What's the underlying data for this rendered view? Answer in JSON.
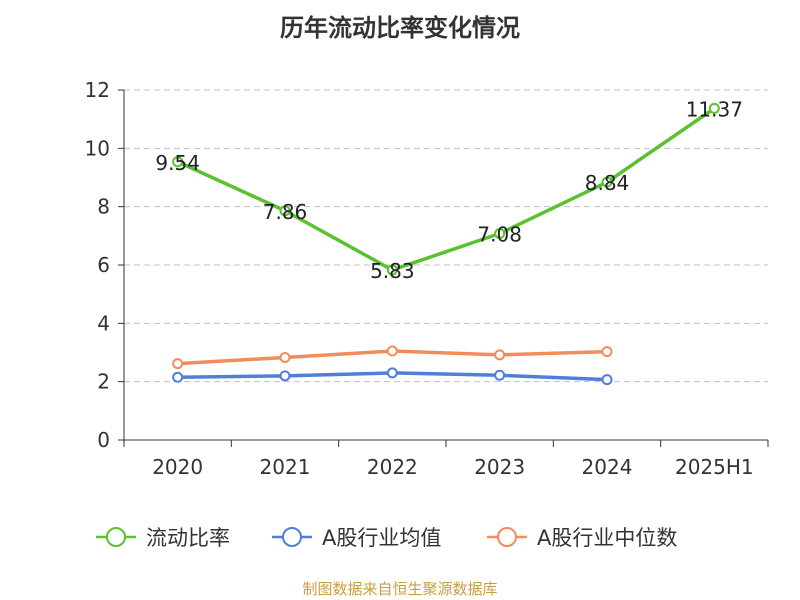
{
  "chart_data": {
    "type": "line",
    "title": "历年流动比率变化情况",
    "categories": [
      "2020",
      "2021",
      "2022",
      "2023",
      "2024",
      "2025H1"
    ],
    "ylim": [
      0,
      12
    ],
    "yticks": [
      0,
      2,
      4,
      6,
      8,
      10,
      12
    ],
    "grid": true,
    "legend_position": "bottom",
    "series": [
      {
        "name": "流动比率",
        "color": "#5bc12f",
        "values": [
          9.54,
          7.86,
          5.83,
          7.08,
          8.84,
          11.37
        ],
        "labels": [
          "9.54",
          "7.86",
          "5.83",
          "7.08",
          "8.84",
          "11.37"
        ]
      },
      {
        "name": "A股行业均值",
        "color": "#4f7fd9",
        "values": [
          2.15,
          2.2,
          2.3,
          2.22,
          2.07,
          null
        ]
      },
      {
        "name": "A股行业中位数",
        "color": "#f28c5a",
        "values": [
          2.62,
          2.83,
          3.05,
          2.92,
          3.03,
          null
        ]
      }
    ]
  },
  "source_note": "制图数据来自恒生聚源数据库"
}
